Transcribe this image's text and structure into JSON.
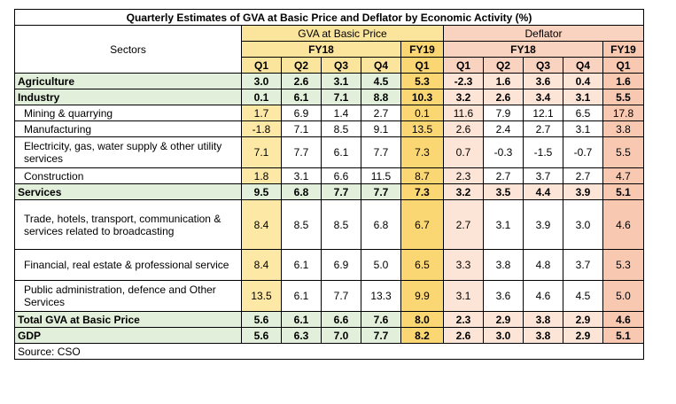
{
  "title": "Quarterly Estimates of GVA at Basic Price and Deflator by Economic Activity  (%)",
  "header": {
    "sectors": "Sectors",
    "gva": "GVA at Basic Price",
    "deflator": "Deflator",
    "fy18": "FY18",
    "fy19": "FY19",
    "q1": "Q1",
    "q2": "Q2",
    "q3": "Q3",
    "q4": "Q4"
  },
  "rows": [
    {
      "sector": "Agriculture",
      "gva": [
        "3.0",
        "2.6",
        "3.1",
        "4.5",
        "5.3"
      ],
      "def": [
        "-2.3",
        "1.6",
        "3.6",
        "0.4",
        "1.6"
      ]
    },
    {
      "sector": "Industry",
      "gva": [
        "0.1",
        "6.1",
        "7.1",
        "8.8",
        "10.3"
      ],
      "def": [
        "3.2",
        "2.6",
        "3.4",
        "3.1",
        "5.5"
      ]
    },
    {
      "sector": "Mining & quarrying",
      "gva": [
        "1.7",
        "6.9",
        "1.4",
        "2.7",
        "0.1"
      ],
      "def": [
        "11.6",
        "7.9",
        "12.1",
        "6.5",
        "17.8"
      ]
    },
    {
      "sector": "Manufacturing",
      "gva": [
        "-1.8",
        "7.1",
        "8.5",
        "9.1",
        "13.5"
      ],
      "def": [
        "2.6",
        "2.4",
        "2.7",
        "3.1",
        "3.8"
      ]
    },
    {
      "sector": "Electricity, gas, water supply &   other utility services",
      "gva": [
        "7.1",
        "7.7",
        "6.1",
        "7.7",
        "7.3"
      ],
      "def": [
        "0.7",
        "-0.3",
        "-1.5",
        "-0.7",
        "5.5"
      ]
    },
    {
      "sector": "Construction",
      "gva": [
        "1.8",
        "3.1",
        "6.6",
        "11.5",
        "8.7"
      ],
      "def": [
        "2.3",
        "2.7",
        "3.7",
        "2.7",
        "4.7"
      ]
    },
    {
      "sector": "Services",
      "gva": [
        "9.5",
        "6.8",
        "7.7",
        "7.7",
        "7.3"
      ],
      "def": [
        "3.2",
        "3.5",
        "4.4",
        "3.9",
        "5.1"
      ]
    },
    {
      "sector": "Trade, hotels, transport, communication & services related to broadcasting",
      "gva": [
        "8.4",
        "8.5",
        "8.5",
        "6.8",
        "6.7"
      ],
      "def": [
        "2.7",
        "3.1",
        "3.9",
        "3.0",
        "4.6"
      ]
    },
    {
      "sector": "Financial, real estate  & professional service",
      "gva": [
        "8.4",
        "6.1",
        "6.9",
        "5.0",
        "6.5"
      ],
      "def": [
        "3.3",
        "3.8",
        "4.8",
        "3.7",
        "5.3"
      ]
    },
    {
      "sector": "Public administration, defence and Other Services",
      "gva": [
        "13.5",
        "6.1",
        "7.7",
        "13.3",
        "9.9"
      ],
      "def": [
        "3.1",
        "3.6",
        "4.6",
        "4.5",
        "5.0"
      ]
    },
    {
      "sector": "Total GVA at Basic Price",
      "gva": [
        "5.6",
        "6.1",
        "6.6",
        "7.6",
        "8.0"
      ],
      "def": [
        "2.3",
        "2.9",
        "3.8",
        "2.9",
        "4.6"
      ]
    },
    {
      "sector": "GDP",
      "gva": [
        "5.6",
        "6.3",
        "7.0",
        "7.7",
        "8.2"
      ],
      "def": [
        "2.6",
        "3.0",
        "3.8",
        "2.9",
        "5.1"
      ]
    }
  ],
  "source": "Source: CSO"
}
